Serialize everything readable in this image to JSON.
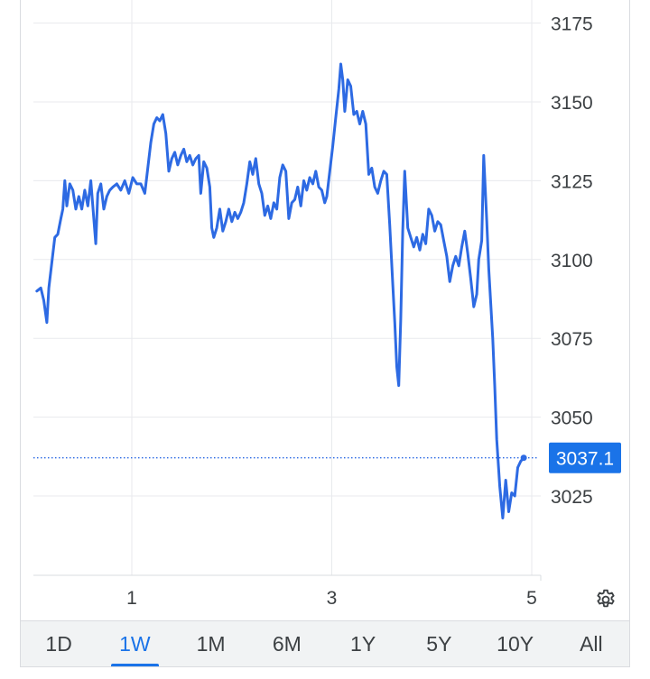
{
  "chart_data": {
    "type": "line",
    "yticks": [
      3025,
      3050,
      3075,
      3100,
      3125,
      3150,
      3175
    ],
    "ylim": [
      3000,
      3180
    ],
    "xticks": [
      {
        "label": "1",
        "x": 1
      },
      {
        "label": "3",
        "x": 3
      },
      {
        "label": "5",
        "x": 5
      }
    ],
    "xlim": [
      0.05,
      5.05
    ],
    "current_value": 3037.1,
    "current_label": "3037.1",
    "line_color": "#2d6ae3",
    "series": [
      {
        "values": [
          [
            0.05,
            3090
          ],
          [
            0.09,
            3091
          ],
          [
            0.12,
            3087
          ],
          [
            0.15,
            3080
          ],
          [
            0.17,
            3091
          ],
          [
            0.2,
            3099
          ],
          [
            0.23,
            3107
          ],
          [
            0.26,
            3108
          ],
          [
            0.29,
            3113
          ],
          [
            0.31,
            3116
          ],
          [
            0.33,
            3125
          ],
          [
            0.35,
            3117
          ],
          [
            0.38,
            3124
          ],
          [
            0.41,
            3122
          ],
          [
            0.44,
            3116
          ],
          [
            0.47,
            3120
          ],
          [
            0.5,
            3116
          ],
          [
            0.53,
            3122
          ],
          [
            0.56,
            3117
          ],
          [
            0.59,
            3125
          ],
          [
            0.62,
            3113
          ],
          [
            0.64,
            3105
          ],
          [
            0.66,
            3121
          ],
          [
            0.69,
            3124
          ],
          [
            0.72,
            3116
          ],
          [
            0.75,
            3120
          ],
          [
            0.78,
            3122
          ],
          [
            0.81,
            3123
          ],
          [
            0.85,
            3124
          ],
          [
            0.89,
            3122
          ],
          [
            0.93,
            3125
          ],
          [
            0.97,
            3121
          ],
          [
            1.01,
            3126
          ],
          [
            1.05,
            3124
          ],
          [
            1.09,
            3124
          ],
          [
            1.13,
            3121
          ],
          [
            1.16,
            3129
          ],
          [
            1.19,
            3137
          ],
          [
            1.22,
            3143
          ],
          [
            1.25,
            3145
          ],
          [
            1.28,
            3144
          ],
          [
            1.31,
            3146
          ],
          [
            1.34,
            3140
          ],
          [
            1.37,
            3128
          ],
          [
            1.4,
            3132
          ],
          [
            1.43,
            3134
          ],
          [
            1.46,
            3130
          ],
          [
            1.49,
            3133
          ],
          [
            1.52,
            3135
          ],
          [
            1.55,
            3131
          ],
          [
            1.58,
            3133
          ],
          [
            1.61,
            3130
          ],
          [
            1.64,
            3132
          ],
          [
            1.67,
            3133
          ],
          [
            1.69,
            3121
          ],
          [
            1.72,
            3131
          ],
          [
            1.75,
            3129
          ],
          [
            1.78,
            3123
          ],
          [
            1.8,
            3110
          ],
          [
            1.82,
            3107
          ],
          [
            1.85,
            3110
          ],
          [
            1.88,
            3116
          ],
          [
            1.91,
            3109
          ],
          [
            1.94,
            3112
          ],
          [
            1.97,
            3116
          ],
          [
            2,
            3112
          ],
          [
            2.03,
            3115
          ],
          [
            2.06,
            3113
          ],
          [
            2.09,
            3115
          ],
          [
            2.12,
            3118
          ],
          [
            2.15,
            3124
          ],
          [
            2.18,
            3131
          ],
          [
            2.21,
            3127
          ],
          [
            2.24,
            3132
          ],
          [
            2.27,
            3124
          ],
          [
            2.3,
            3121
          ],
          [
            2.33,
            3114
          ],
          [
            2.36,
            3117
          ],
          [
            2.39,
            3113
          ],
          [
            2.42,
            3118
          ],
          [
            2.45,
            3116
          ],
          [
            2.48,
            3126
          ],
          [
            2.51,
            3130
          ],
          [
            2.54,
            3128
          ],
          [
            2.57,
            3113
          ],
          [
            2.6,
            3118
          ],
          [
            2.63,
            3119
          ],
          [
            2.66,
            3123
          ],
          [
            2.69,
            3117
          ],
          [
            2.72,
            3125
          ],
          [
            2.75,
            3122
          ],
          [
            2.78,
            3126
          ],
          [
            2.81,
            3124
          ],
          [
            2.84,
            3128
          ],
          [
            2.87,
            3123
          ],
          [
            2.9,
            3122
          ],
          [
            2.93,
            3118
          ],
          [
            2.95,
            3120
          ],
          [
            2.98,
            3128
          ],
          [
            3.01,
            3136
          ],
          [
            3.04,
            3145
          ],
          [
            3.07,
            3154
          ],
          [
            3.09,
            3162
          ],
          [
            3.11,
            3157
          ],
          [
            3.13,
            3147
          ],
          [
            3.16,
            3157
          ],
          [
            3.19,
            3155
          ],
          [
            3.22,
            3146
          ],
          [
            3.25,
            3147
          ],
          [
            3.28,
            3143
          ],
          [
            3.31,
            3147
          ],
          [
            3.34,
            3143
          ],
          [
            3.37,
            3127
          ],
          [
            3.4,
            3129
          ],
          [
            3.43,
            3123
          ],
          [
            3.46,
            3121
          ],
          [
            3.49,
            3125
          ],
          [
            3.52,
            3128
          ],
          [
            3.55,
            3127
          ],
          [
            3.58,
            3111
          ],
          [
            3.61,
            3092
          ],
          [
            3.63,
            3080
          ],
          [
            3.65,
            3066
          ],
          [
            3.67,
            3060
          ],
          [
            3.69,
            3081
          ],
          [
            3.71,
            3109
          ],
          [
            3.73,
            3128
          ],
          [
            3.76,
            3110
          ],
          [
            3.79,
            3107
          ],
          [
            3.82,
            3104
          ],
          [
            3.85,
            3107
          ],
          [
            3.88,
            3103
          ],
          [
            3.91,
            3108
          ],
          [
            3.94,
            3105
          ],
          [
            3.97,
            3116
          ],
          [
            4,
            3114
          ],
          [
            4.03,
            3109
          ],
          [
            4.06,
            3112
          ],
          [
            4.09,
            3111
          ],
          [
            4.12,
            3106
          ],
          [
            4.15,
            3101
          ],
          [
            4.18,
            3093
          ],
          [
            4.21,
            3098
          ],
          [
            4.24,
            3101
          ],
          [
            4.27,
            3098
          ],
          [
            4.3,
            3104
          ],
          [
            4.33,
            3109
          ],
          [
            4.36,
            3102
          ],
          [
            4.39,
            3094
          ],
          [
            4.42,
            3085
          ],
          [
            4.45,
            3089
          ],
          [
            4.47,
            3100
          ],
          [
            4.5,
            3106
          ],
          [
            4.52,
            3133
          ],
          [
            4.55,
            3112
          ],
          [
            4.57,
            3097
          ],
          [
            4.59,
            3086
          ],
          [
            4.61,
            3075
          ],
          [
            4.63,
            3060
          ],
          [
            4.65,
            3043
          ],
          [
            4.68,
            3028
          ],
          [
            4.71,
            3018
          ],
          [
            4.74,
            3030
          ],
          [
            4.77,
            3020
          ],
          [
            4.8,
            3026
          ],
          [
            4.83,
            3025
          ],
          [
            4.86,
            3034
          ],
          [
            4.89,
            3036
          ],
          [
            4.92,
            3037.1
          ]
        ]
      }
    ]
  },
  "settings": {
    "icon": "gear-icon"
  },
  "range_tabs": [
    {
      "label": "1D",
      "active": false
    },
    {
      "label": "1W",
      "active": true
    },
    {
      "label": "1M",
      "active": false
    },
    {
      "label": "6M",
      "active": false
    },
    {
      "label": "1Y",
      "active": false
    },
    {
      "label": "5Y",
      "active": false
    },
    {
      "label": "10Y",
      "active": false
    },
    {
      "label": "All",
      "active": false
    }
  ]
}
